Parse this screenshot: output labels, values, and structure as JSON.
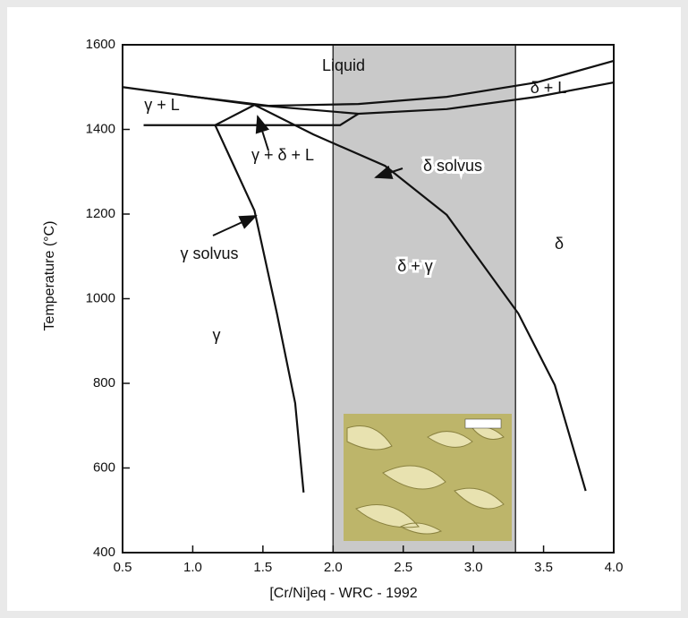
{
  "chart_data": {
    "type": "line",
    "xlabel": "[Cr/Ni]eq  - WRC - 1992",
    "ylabel": "Temperature (°C)",
    "xlim": [
      0.5,
      4.0
    ],
    "ylim": [
      400,
      1600
    ],
    "xticks": [
      0.5,
      {
        "value": 1,
        "label": "1.0"
      },
      1.5,
      {
        "value": 2,
        "label": "2.0"
      },
      2.5,
      {
        "value": 3,
        "label": "3.0"
      },
      3.5,
      {
        "value": 4,
        "label": "4.0"
      }
    ],
    "yticks": [
      400,
      600,
      800,
      1000,
      1200,
      1400,
      1600
    ],
    "shade": {
      "x": [
        2.0,
        3.3
      ],
      "color": "#c9c9c9"
    },
    "series": [
      {
        "color": "#111111",
        "x": [
          0.5,
          1.44
        ],
        "values": [
          1500,
          1458
        ]
      },
      {
        "color": "#111111",
        "x": [
          0.96,
          1.54,
          2.18,
          2.81,
          3.45,
          4.0
        ],
        "values": [
          1479,
          1456,
          1460,
          1477,
          1511,
          1562
        ]
      },
      {
        "color": "#111111",
        "x": [
          1.44,
          2.18,
          2.81,
          3.45,
          4.0
        ],
        "values": [
          1458,
          1437,
          1448,
          1477,
          1511
        ]
      },
      {
        "color": "#111111",
        "x": [
          0.65,
          1.16,
          2.05,
          2.18
        ],
        "values": [
          1410,
          1410,
          1410,
          1437
        ]
      },
      {
        "color": "#111111",
        "x": [
          1.16,
          1.44
        ],
        "values": [
          1410,
          1458
        ]
      },
      {
        "color": "#111111",
        "x": [
          1.16,
          1.44,
          1.6,
          1.73,
          1.79
        ],
        "values": [
          1410,
          1208,
          965,
          753,
          542
        ]
      },
      {
        "color": "#111111",
        "x": [
          1.44,
          1.86,
          2.37,
          2.81,
          3.32,
          3.58,
          3.8
        ],
        "values": [
          1458,
          1388,
          1314,
          1198,
          965,
          796,
          546
        ]
      }
    ],
    "annotations": [
      "Liquid",
      "γ + L",
      "δ + L",
      "γ + δ + L",
      "δ solvus",
      "γ solvus",
      "δ + γ",
      "δ",
      "γ"
    ]
  }
}
